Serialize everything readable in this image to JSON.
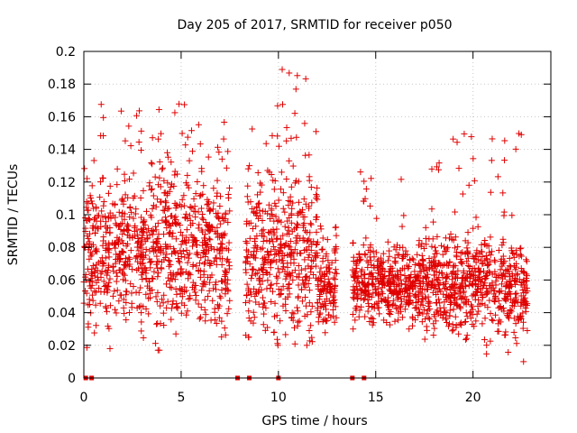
{
  "chart_data": {
    "type": "scatter",
    "title": "Day 205 of 2017, SRMTID for receiver p050",
    "xlabel": "GPS time / hours",
    "ylabel": "SRMTID / TECUs",
    "xlim": [
      0,
      24
    ],
    "ylim": [
      0,
      0.2
    ],
    "xticks": [
      0,
      5,
      10,
      15,
      20
    ],
    "xtick_labels": [
      "0",
      "5",
      "10",
      "15",
      "20"
    ],
    "yticks": [
      0,
      0.02,
      0.04,
      0.06,
      0.08,
      0.1,
      0.12,
      0.14,
      0.16,
      0.18,
      0.2
    ],
    "ytick_labels": [
      "0",
      "0.02",
      "0.04",
      "0.06",
      "0.08",
      "0.1",
      "0.12",
      "0.14",
      "0.16",
      "0.18",
      "0.2"
    ],
    "grid": true,
    "marker": "+",
    "color": "#e00000",
    "marker_count": 2600,
    "zero_markers_x": [
      0.1,
      0.4,
      7.9,
      8.5,
      10.0,
      13.8,
      14.4
    ],
    "segments": [
      {
        "x0": 0.0,
        "x1": 3.5,
        "mean": 0.079,
        "sd": 0.022,
        "lo": 0.018,
        "hi": 0.168
      },
      {
        "x0": 3.5,
        "x1": 7.5,
        "mean": 0.08,
        "sd": 0.025,
        "lo": 0.017,
        "hi": 0.168
      },
      {
        "x0": 8.3,
        "x1": 9.8,
        "mean": 0.074,
        "sd": 0.026,
        "lo": 0.025,
        "hi": 0.166
      },
      {
        "x0": 9.8,
        "x1": 12.0,
        "mean": 0.077,
        "sd": 0.026,
        "lo": 0.02,
        "hi": 0.199
      },
      {
        "x0": 12.0,
        "x1": 13.0,
        "mean": 0.055,
        "sd": 0.013,
        "lo": 0.02,
        "hi": 0.093
      },
      {
        "x0": 13.8,
        "x1": 17.5,
        "mean": 0.058,
        "sd": 0.012,
        "lo": 0.03,
        "hi": 0.128
      },
      {
        "x0": 17.5,
        "x1": 22.8,
        "mean": 0.057,
        "sd": 0.015,
        "lo": 0.01,
        "hi": 0.15
      }
    ]
  }
}
